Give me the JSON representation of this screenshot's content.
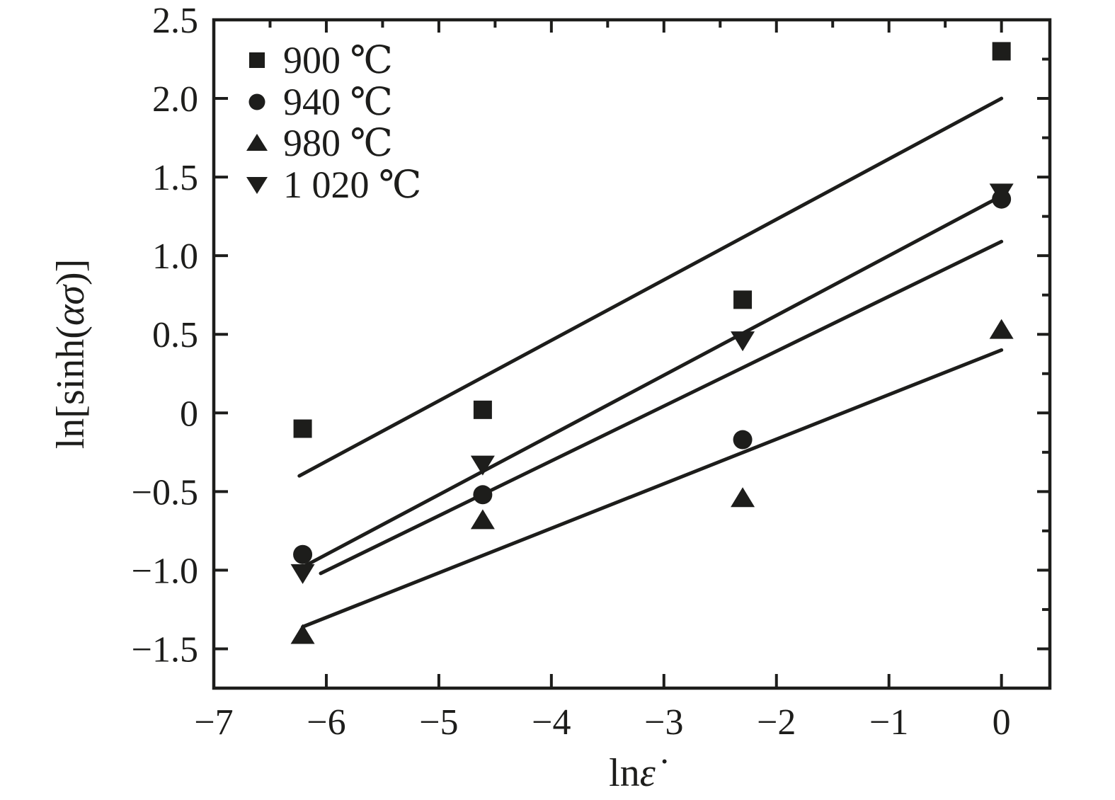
{
  "figure": {
    "background": "#ffffff",
    "ink": "#1d1d1b"
  },
  "chart_data": {
    "type": "scatter",
    "title": "",
    "xlabel": {
      "full": "lnε̇",
      "prefix": "ln",
      "symbol": "ε̇"
    },
    "ylabel": {
      "full": "ln[sinh(ασ)]",
      "prefix": "ln[sinh(",
      "symbol": "ασ",
      "suffix": ")]"
    },
    "xlim": [
      -7,
      0.43
    ],
    "ylim": [
      -1.75,
      2.5
    ],
    "x_major_ticks": [
      -7,
      -6,
      -5,
      -4,
      -3,
      -2,
      -1,
      0
    ],
    "x_tick_labels": [
      "−7",
      "−6",
      "−5",
      "−4",
      "−3",
      "−2",
      "−1",
      "0"
    ],
    "x_minor_step": 0.5,
    "y_major_ticks": [
      2.5,
      2.0,
      1.5,
      1.0,
      0.5,
      0,
      -0.5,
      -1.0,
      -1.5
    ],
    "y_tick_labels": [
      "2.5",
      "2.0",
      "1.5",
      "1.0",
      "0.5",
      "0",
      "−0.5",
      "−1.0",
      "−1.5"
    ],
    "y_minor_step": 0.25,
    "grid": false,
    "legend_position": "top-left",
    "x": [
      -6.21,
      -4.61,
      -2.3,
      0
    ],
    "series": [
      {
        "name": "900 ℃",
        "marker": "square",
        "y": [
          -0.1,
          0.02,
          0.72,
          2.3
        ],
        "fit_line": {
          "x": [
            -6.24,
            0
          ],
          "y": [
            -0.4,
            2.0
          ]
        }
      },
      {
        "name": "940 ℃",
        "marker": "circle",
        "y": [
          -0.9,
          -0.52,
          -0.17,
          1.36
        ],
        "fit_line": {
          "x": [
            -6.05,
            0
          ],
          "y": [
            -1.02,
            1.09
          ]
        }
      },
      {
        "name": "980 ℃",
        "marker": "triangle-up",
        "y": [
          -1.41,
          -0.68,
          -0.54,
          0.53
        ],
        "fit_line": {
          "x": [
            -6.21,
            0
          ],
          "y": [
            -1.36,
            0.4
          ]
        }
      },
      {
        "name": "1 020 ℃",
        "marker": "triangle-down",
        "y": [
          -1.02,
          -0.33,
          0.46,
          1.4
        ],
        "fit_line": {
          "x": [
            -6.21,
            0
          ],
          "y": [
            -0.98,
            1.38
          ]
        }
      }
    ]
  }
}
